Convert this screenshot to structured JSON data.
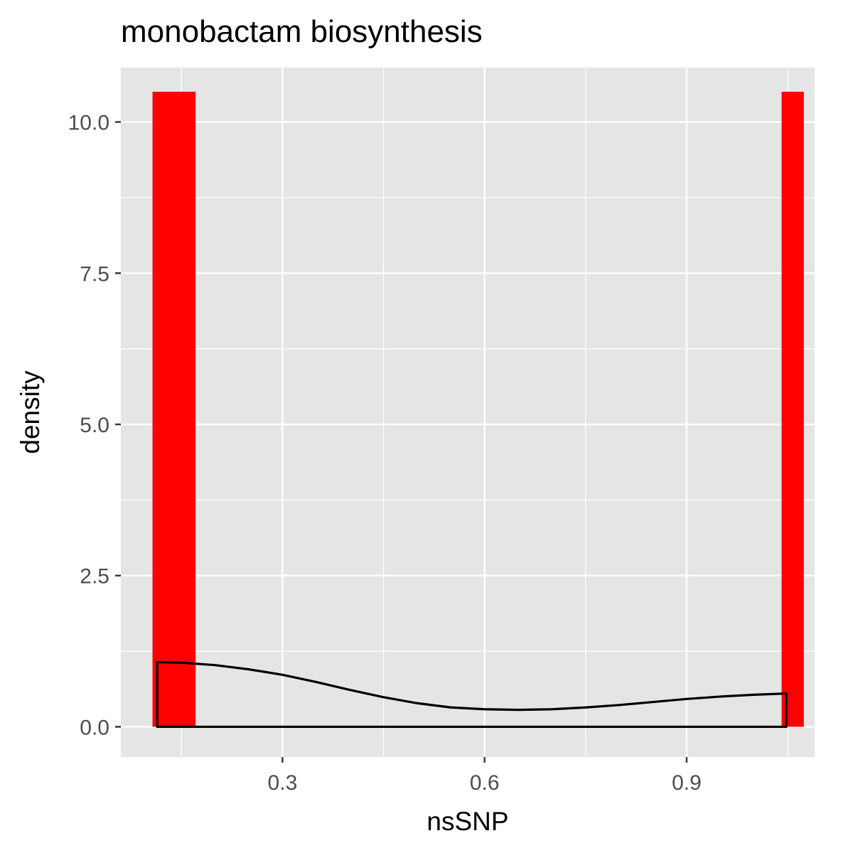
{
  "chart_data": {
    "type": "bar",
    "title": "monobactam biosynthesis",
    "xlabel": "nsSNP",
    "ylabel": "density",
    "xlim": [
      0.06,
      1.09
    ],
    "ylim": [
      -0.5,
      10.9
    ],
    "x_ticks": [
      0.3,
      0.6,
      0.9
    ],
    "x_tick_labels": [
      "0.3",
      "0.6",
      "0.9"
    ],
    "y_ticks": [
      0,
      2.5,
      5,
      7.5,
      10
    ],
    "y_tick_labels": [
      "0.0",
      "2.5",
      "5.0",
      "7.5",
      "10.0"
    ],
    "grid": true,
    "histogram": {
      "color": "#ff0000",
      "bins": [
        {
          "x_start": 0.107,
          "x_end": 0.171,
          "density": 10.5
        },
        {
          "x_start": 1.041,
          "x_end": 1.074,
          "density": 10.5
        }
      ]
    },
    "density_curve": {
      "color": "#000000",
      "points": [
        {
          "x": 0.114,
          "y": 1.07
        },
        {
          "x": 0.15,
          "y": 1.06
        },
        {
          "x": 0.2,
          "y": 1.02
        },
        {
          "x": 0.25,
          "y": 0.95
        },
        {
          "x": 0.3,
          "y": 0.86
        },
        {
          "x": 0.35,
          "y": 0.74
        },
        {
          "x": 0.4,
          "y": 0.61
        },
        {
          "x": 0.45,
          "y": 0.49
        },
        {
          "x": 0.5,
          "y": 0.39
        },
        {
          "x": 0.55,
          "y": 0.32
        },
        {
          "x": 0.6,
          "y": 0.29
        },
        {
          "x": 0.65,
          "y": 0.28
        },
        {
          "x": 0.7,
          "y": 0.29
        },
        {
          "x": 0.75,
          "y": 0.32
        },
        {
          "x": 0.8,
          "y": 0.36
        },
        {
          "x": 0.85,
          "y": 0.41
        },
        {
          "x": 0.9,
          "y": 0.46
        },
        {
          "x": 0.95,
          "y": 0.5
        },
        {
          "x": 1.0,
          "y": 0.53
        },
        {
          "x": 1.048,
          "y": 0.55
        }
      ]
    }
  }
}
